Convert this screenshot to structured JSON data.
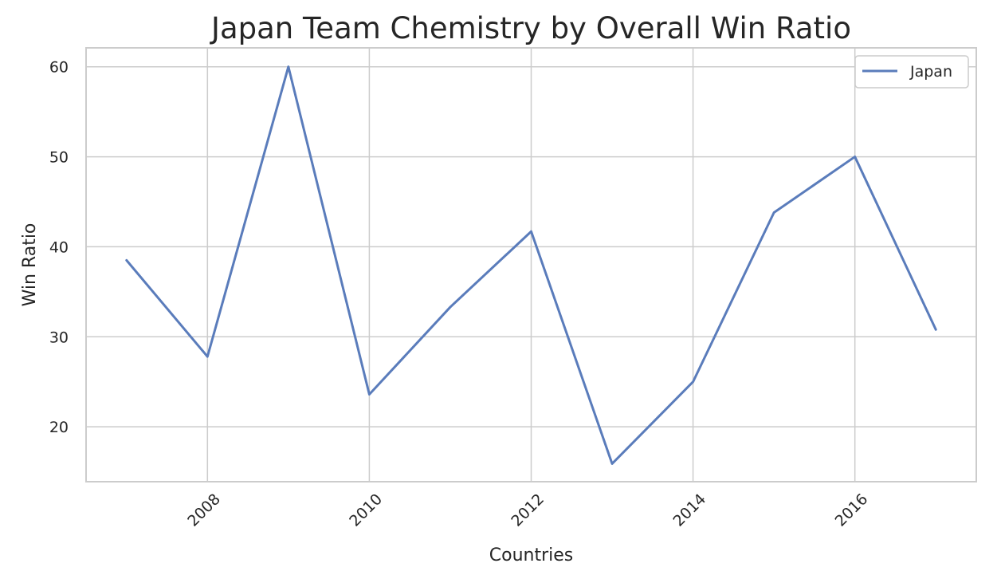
{
  "chart_data": {
    "type": "line",
    "title": "Japan Team Chemistry by Overall Win Ratio",
    "xlabel": "Countries",
    "ylabel": "Win Ratio",
    "x": [
      2007,
      2008,
      2009,
      2010,
      2011,
      2012,
      2013,
      2014,
      2015,
      2016,
      2017
    ],
    "series": [
      {
        "name": "Japan",
        "values": [
          38.5,
          27.8,
          60.0,
          23.6,
          33.3,
          41.7,
          15.9,
          25.0,
          43.8,
          50.0,
          30.8
        ],
        "color": "#5a7cbb"
      }
    ],
    "xlim": [
      2006.5,
      2017.5
    ],
    "ylim": [
      13.9,
      62.1
    ],
    "x_ticks": [
      "2008",
      "2010",
      "2012",
      "2014",
      "2016"
    ],
    "y_ticks": [
      "20",
      "30",
      "40",
      "50",
      "60"
    ],
    "grid": true,
    "legend_position": "upper right"
  }
}
